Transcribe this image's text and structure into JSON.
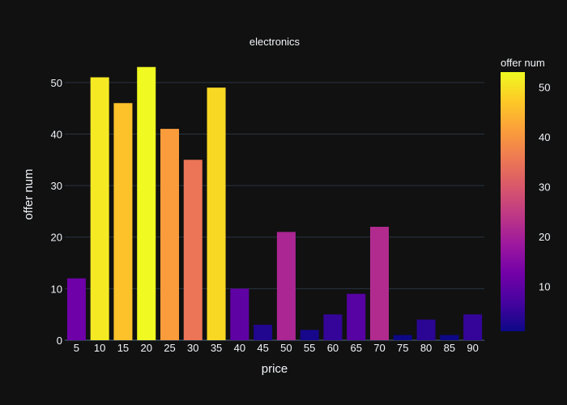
{
  "chart_data": {
    "type": "bar",
    "title": "electronics",
    "xlabel": "price",
    "ylabel": "offer num",
    "categories": [
      "5",
      "10",
      "15",
      "20",
      "25",
      "30",
      "35",
      "40",
      "45",
      "50",
      "55",
      "60",
      "65",
      "70",
      "75",
      "80",
      "85",
      "90"
    ],
    "values": [
      12,
      51,
      46,
      53,
      41,
      35,
      49,
      10,
      3,
      21,
      2,
      5,
      9,
      22,
      1,
      4,
      1,
      5
    ],
    "ylim": [
      0,
      55
    ],
    "yticks": [
      0,
      10,
      20,
      30,
      40,
      50
    ],
    "grid": true,
    "colorbar": {
      "title": "offer num",
      "range": [
        1,
        53
      ],
      "ticks": [
        10,
        20,
        30,
        40,
        50
      ],
      "colorscale": [
        "#0d0887",
        "#46039f",
        "#7201a8",
        "#9c179e",
        "#bd3786",
        "#d8576b",
        "#ed7953",
        "#fb9f3a",
        "#fdca26",
        "#f0f921"
      ]
    }
  }
}
